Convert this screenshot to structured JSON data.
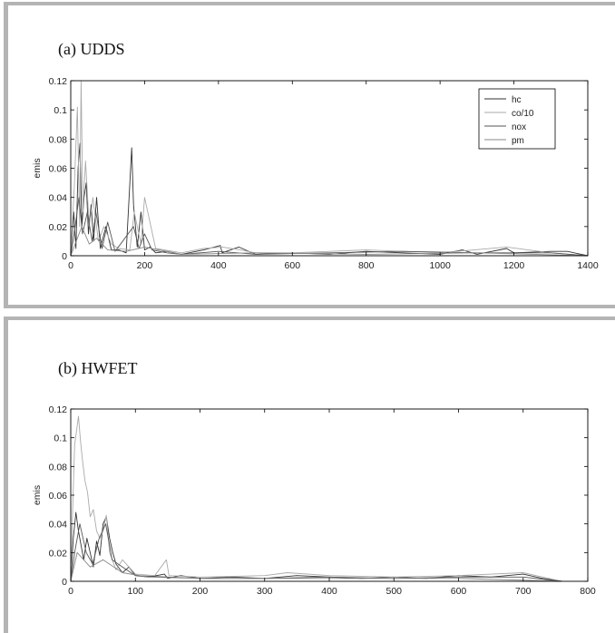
{
  "chart_data": [
    {
      "type": "line",
      "title": "(a) UDDS",
      "xlabel": "",
      "ylabel": "emis",
      "xlim": [
        0,
        1400
      ],
      "ylim": [
        0,
        0.12
      ],
      "xticks": [
        0,
        200,
        400,
        600,
        800,
        1000,
        1200,
        1400
      ],
      "yticks": [
        0,
        0.02,
        0.04,
        0.06,
        0.08,
        0.1,
        0.12
      ],
      "xtick_labels": [
        "0",
        "200",
        "400",
        "600",
        "800",
        "1000",
        "1200",
        "1400"
      ],
      "ytick_labels": [
        "0",
        "0.02",
        "0.04",
        "0.06",
        "0.08",
        "0.1",
        "0.12"
      ],
      "grid": false,
      "legend": "top-right",
      "series": [
        {
          "name": "hc",
          "color": "#333333",
          "x": [
            0,
            8,
            14,
            20,
            25,
            30,
            36,
            42,
            48,
            55,
            62,
            70,
            80,
            95,
            110,
            130,
            150,
            165,
            170,
            180,
            190,
            200,
            215,
            230,
            260,
            300,
            360,
            405,
            410,
            455,
            500,
            600,
            700,
            800,
            900,
            1000,
            1060,
            1100,
            1180,
            1200,
            1300,
            1345,
            1400
          ],
          "y": [
            0.0,
            0.03,
            0.005,
            0.06,
            0.077,
            0.02,
            0.04,
            0.05,
            0.015,
            0.035,
            0.01,
            0.04,
            0.005,
            0.02,
            0.004,
            0.004,
            0.002,
            0.074,
            0.035,
            0.006,
            0.03,
            0.004,
            0.006,
            0.002,
            0.003,
            0.001,
            0.004,
            0.007,
            0.002,
            0.006,
            0.001,
            0.002,
            0.001,
            0.003,
            0.002,
            0.001,
            0.004,
            0.001,
            0.005,
            0.002,
            0.003,
            0.003,
            0.0
          ]
        },
        {
          "name": "co/10",
          "color": "#aaaaaa",
          "x": [
            0,
            10,
            18,
            24,
            28,
            33,
            40,
            50,
            60,
            75,
            90,
            110,
            130,
            160,
            172,
            190,
            200,
            230,
            300,
            360,
            410,
            460,
            500,
            600,
            800,
            1000,
            1180,
            1300,
            1400
          ],
          "y": [
            0.0,
            0.05,
            0.102,
            0.02,
            0.12,
            0.03,
            0.065,
            0.02,
            0.04,
            0.01,
            0.02,
            0.008,
            0.005,
            0.004,
            0.03,
            0.008,
            0.04,
            0.005,
            0.002,
            0.005,
            0.006,
            0.004,
            0.002,
            0.002,
            0.004,
            0.002,
            0.006,
            0.002,
            0.0
          ]
        },
        {
          "name": "nox",
          "color": "#555555",
          "x": [
            0,
            12,
            22,
            32,
            45,
            58,
            68,
            85,
            100,
            120,
            170,
            185,
            200,
            220,
            260,
            300,
            400,
            500,
            700,
            900,
            1100,
            1300,
            1400
          ],
          "y": [
            0.0,
            0.02,
            0.04,
            0.015,
            0.03,
            0.01,
            0.03,
            0.005,
            0.023,
            0.003,
            0.02,
            0.005,
            0.015,
            0.004,
            0.002,
            0.001,
            0.003,
            0.001,
            0.002,
            0.003,
            0.002,
            0.002,
            0.0
          ]
        },
        {
          "name": "pm",
          "color": "#888888",
          "x": [
            0,
            15,
            30,
            50,
            70,
            100,
            150,
            200,
            300,
            500,
            800,
            1100,
            1400
          ],
          "y": [
            0.0,
            0.01,
            0.02,
            0.008,
            0.012,
            0.004,
            0.003,
            0.006,
            0.001,
            0.002,
            0.001,
            0.002,
            0.0
          ]
        }
      ]
    },
    {
      "type": "line",
      "title": "(b) HWFET",
      "xlabel": "",
      "ylabel": "emis",
      "xlim": [
        0,
        800
      ],
      "ylim": [
        0,
        0.12
      ],
      "xticks": [
        0,
        100,
        200,
        300,
        400,
        500,
        600,
        700,
        800
      ],
      "yticks": [
        0,
        0.02,
        0.04,
        0.06,
        0.08,
        0.1,
        0.12
      ],
      "xtick_labels": [
        "0",
        "100",
        "200",
        "300",
        "400",
        "500",
        "600",
        "700",
        "800"
      ],
      "ytick_labels": [
        "0",
        "0.02",
        "0.04",
        "0.06",
        "0.08",
        "0.1",
        "0.12"
      ],
      "grid": false,
      "series": [
        {
          "name": "hc",
          "color": "#333333",
          "x": [
            0,
            4,
            8,
            12,
            16,
            20,
            25,
            30,
            35,
            40,
            45,
            50,
            55,
            60,
            65,
            70,
            80,
            90,
            100,
            120,
            145,
            150,
            170,
            200,
            250,
            300,
            350,
            400,
            450,
            500,
            550,
            600,
            650,
            700,
            730,
            760
          ],
          "y": [
            0.0,
            0.03,
            0.048,
            0.035,
            0.025,
            0.015,
            0.03,
            0.02,
            0.01,
            0.028,
            0.018,
            0.04,
            0.045,
            0.03,
            0.02,
            0.012,
            0.006,
            0.01,
            0.004,
            0.003,
            0.005,
            0.002,
            0.004,
            0.002,
            0.003,
            0.002,
            0.004,
            0.003,
            0.002,
            0.003,
            0.002,
            0.004,
            0.003,
            0.005,
            0.002,
            0.0
          ]
        },
        {
          "name": "co/10",
          "color": "#aaaaaa",
          "x": [
            0,
            3,
            6,
            9,
            12,
            15,
            18,
            22,
            26,
            30,
            35,
            40,
            45,
            50,
            55,
            60,
            70,
            80,
            100,
            130,
            148,
            152,
            200,
            300,
            335,
            400,
            500,
            600,
            700,
            720,
            760
          ],
          "y": [
            0.0,
            0.05,
            0.095,
            0.105,
            0.115,
            0.098,
            0.085,
            0.07,
            0.062,
            0.045,
            0.05,
            0.035,
            0.03,
            0.035,
            0.046,
            0.02,
            0.008,
            0.015,
            0.005,
            0.004,
            0.015,
            0.004,
            0.003,
            0.004,
            0.006,
            0.004,
            0.003,
            0.004,
            0.006,
            0.004,
            0.0
          ]
        },
        {
          "name": "nox",
          "color": "#555555",
          "x": [
            0,
            6,
            14,
            24,
            34,
            44,
            54,
            64,
            80,
            100,
            150,
            200,
            300,
            400,
            500,
            600,
            700,
            760
          ],
          "y": [
            0.0,
            0.02,
            0.04,
            0.02,
            0.012,
            0.03,
            0.04,
            0.015,
            0.01,
            0.004,
            0.003,
            0.002,
            0.002,
            0.003,
            0.002,
            0.003,
            0.003,
            0.0
          ]
        },
        {
          "name": "pm",
          "color": "#888888",
          "x": [
            0,
            10,
            30,
            50,
            80,
            120,
            200,
            400,
            600,
            760
          ],
          "y": [
            0.0,
            0.02,
            0.01,
            0.015,
            0.006,
            0.003,
            0.002,
            0.002,
            0.002,
            0.0
          ]
        }
      ]
    }
  ]
}
